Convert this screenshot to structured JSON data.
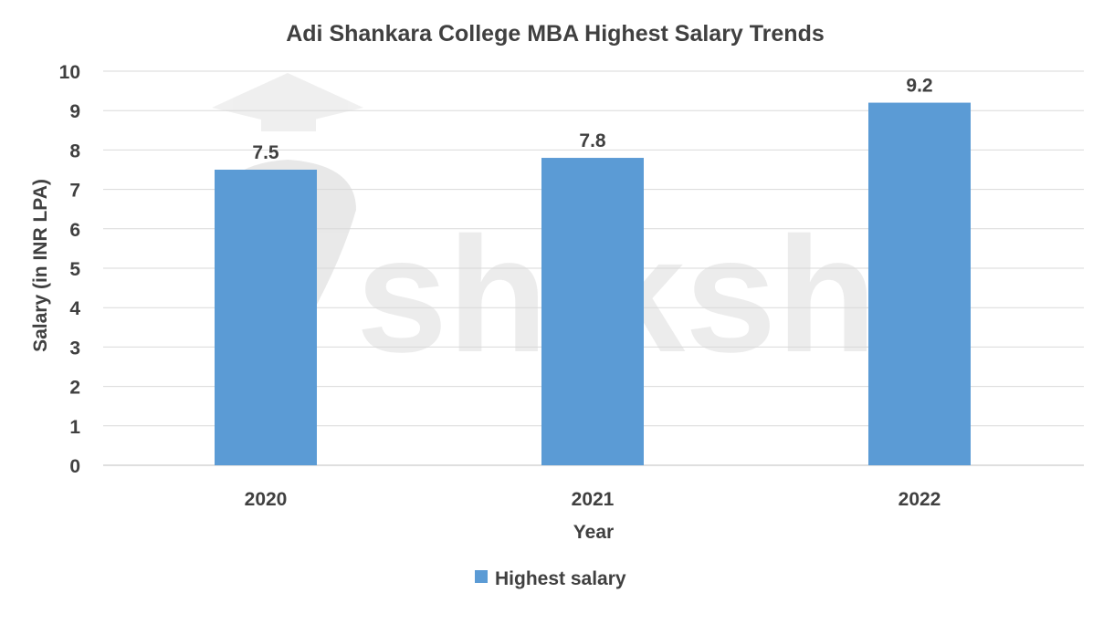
{
  "chart_data": {
    "type": "bar",
    "title": "Adi Shankara College MBA Highest Salary Trends",
    "xlabel": "Year",
    "ylabel": "Salary (in INR LPA)",
    "categories": [
      "2020",
      "2021",
      "2022"
    ],
    "series": [
      {
        "name": "Highest salary",
        "values": [
          7.5,
          7.8,
          9.2
        ],
        "color": "#5B9BD5"
      }
    ],
    "ylim": [
      0,
      10
    ],
    "yticks": [
      0,
      1,
      2,
      3,
      4,
      5,
      6,
      7,
      8,
      9,
      10
    ],
    "grid": true,
    "legend": "bottom",
    "watermark": "shiksha"
  }
}
